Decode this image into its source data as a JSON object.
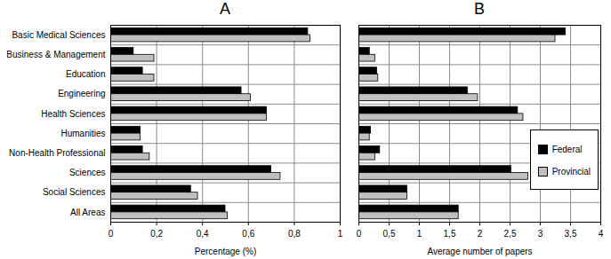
{
  "chart_data": [
    {
      "type": "bar",
      "title": "A",
      "orientation": "horizontal",
      "grid": true,
      "x_label": "Percentage (%)",
      "categories": [
        "Basic Medical Sciences",
        "Business & Management",
        "Education",
        "Engineering",
        "Health Sciences",
        "Humanities",
        "Non-Health Professional",
        "Sciences",
        "Social Sciences",
        "All Areas"
      ],
      "series": [
        {
          "name": "Federal",
          "color": "#000000",
          "values": [
            0.86,
            0.1,
            0.14,
            0.57,
            0.68,
            0.13,
            0.14,
            0.7,
            0.35,
            0.5
          ]
        },
        {
          "name": "Provincial",
          "color": "#c0c0c0",
          "values": [
            0.87,
            0.19,
            0.19,
            0.61,
            0.68,
            0.13,
            0.17,
            0.74,
            0.38,
            0.51
          ]
        }
      ],
      "xlim": [
        0,
        1
      ],
      "xticks": [
        0,
        {
          "value": 0.2,
          "label": "0,2"
        },
        {
          "value": 0.4,
          "label": "0,4"
        },
        {
          "value": 0.6,
          "label": "0,6"
        },
        {
          "value": 0.8,
          "label": "0,8"
        },
        1
      ]
    },
    {
      "type": "bar",
      "title": "B",
      "orientation": "horizontal",
      "grid": true,
      "legend": "right",
      "tick_labels": "x",
      "x_label": "Average number of papers",
      "categories": [
        "Basic Medical Sciences",
        "Business & Management",
        "Education",
        "Engineering",
        "Health Sciences",
        "Humanities",
        "Non-Health Professional",
        "Sciences",
        "Social Sciences",
        "All Areas"
      ],
      "series": [
        {
          "name": "Federal",
          "color": "#000000",
          "values": [
            3.42,
            0.18,
            0.3,
            1.8,
            2.63,
            0.2,
            0.35,
            2.52,
            0.8,
            1.65
          ]
        },
        {
          "name": "Provincial",
          "color": "#c0c0c0",
          "values": [
            3.25,
            0.27,
            0.32,
            1.97,
            2.72,
            0.18,
            0.27,
            2.8,
            0.8,
            1.65
          ]
        }
      ],
      "xlim": [
        0,
        4
      ],
      "xticks": [
        0,
        {
          "value": 0.5,
          "label": "0,5"
        },
        1,
        {
          "value": 1.5,
          "label": "1,5"
        },
        2,
        {
          "value": 2.5,
          "label": "2,5"
        },
        3,
        {
          "value": 3.5,
          "label": "3,5"
        },
        4
      ]
    }
  ]
}
